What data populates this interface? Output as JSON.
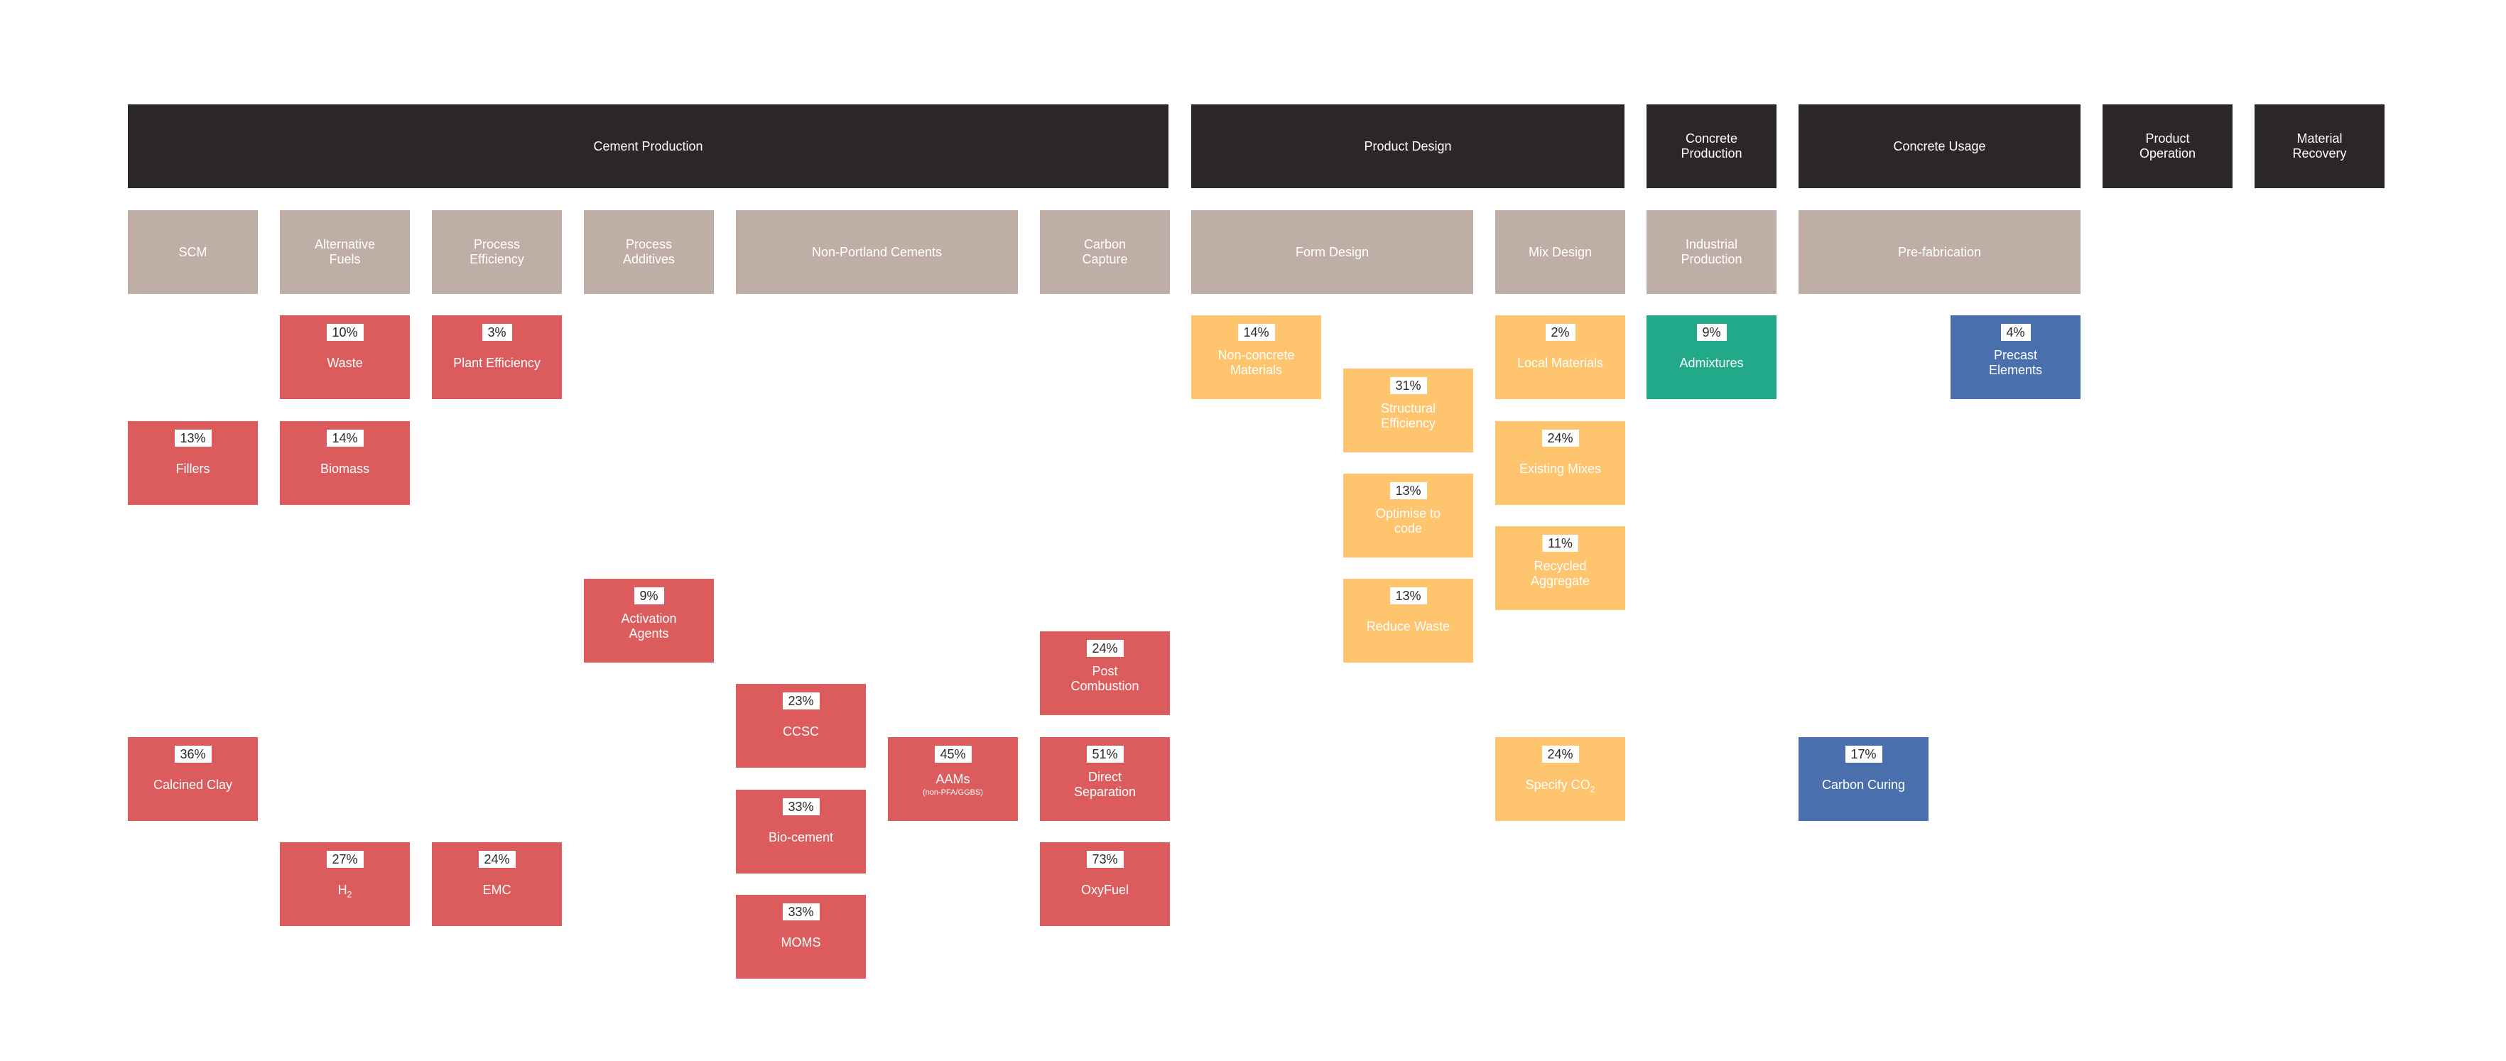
{
  "stages": [
    {
      "id": "cement-production",
      "label": "Cement Production"
    },
    {
      "id": "product-design",
      "label": "Product Design"
    },
    {
      "id": "concrete-production",
      "label": "Concrete\nProduction"
    },
    {
      "id": "concrete-usage",
      "label": "Concrete Usage"
    },
    {
      "id": "product-operation",
      "label": "Product\nOperation"
    },
    {
      "id": "material-recovery",
      "label": "Material\nRecovery"
    }
  ],
  "categories": [
    {
      "id": "scm",
      "label": "SCM"
    },
    {
      "id": "alternative-fuels",
      "label": "Alternative\nFuels"
    },
    {
      "id": "process-efficiency",
      "label": "Process\nEfficiency"
    },
    {
      "id": "process-additives",
      "label": "Process\nAdditives"
    },
    {
      "id": "non-portland-cements",
      "label": "Non-Portland Cements"
    },
    {
      "id": "carbon-capture",
      "label": "Carbon\nCapture"
    },
    {
      "id": "form-design",
      "label": "Form Design"
    },
    {
      "id": "mix-design",
      "label": "Mix Design"
    },
    {
      "id": "industrial-production",
      "label": "Industrial\nProduction"
    },
    {
      "id": "pre-fabrication",
      "label": "Pre-fabrication"
    }
  ],
  "items": [
    {
      "id": "waste",
      "pct": "10%",
      "label": "Waste",
      "color": "red"
    },
    {
      "id": "plant-efficiency",
      "pct": "3%",
      "label": "Plant Efficiency",
      "color": "red"
    },
    {
      "id": "non-concrete-materials",
      "pct": "14%",
      "label": "Non-concrete\nMaterials",
      "color": "yellow"
    },
    {
      "id": "structural-efficiency",
      "pct": "31%",
      "label": "Structural\nEfficiency",
      "color": "yellow"
    },
    {
      "id": "local-materials",
      "pct": "2%",
      "label": "Local Materials",
      "color": "yellow"
    },
    {
      "id": "admixtures",
      "pct": "9%",
      "label": "Admixtures",
      "color": "green"
    },
    {
      "id": "precast-elements",
      "pct": "4%",
      "label": "Precast\nElements",
      "color": "blue"
    },
    {
      "id": "fillers",
      "pct": "13%",
      "label": "Fillers",
      "color": "red"
    },
    {
      "id": "biomass",
      "pct": "14%",
      "label": "Biomass",
      "color": "red"
    },
    {
      "id": "existing-mixes",
      "pct": "24%",
      "label": "Existing Mixes",
      "color": "yellow"
    },
    {
      "id": "optimise-to-code",
      "pct": "13%",
      "label": "Optimise to\ncode",
      "color": "yellow"
    },
    {
      "id": "recycled-aggregate",
      "pct": "11%",
      "label": "Recycled\nAggregate",
      "color": "yellow"
    },
    {
      "id": "activation-agents",
      "pct": "9%",
      "label": "Activation\nAgents",
      "color": "red"
    },
    {
      "id": "reduce-waste",
      "pct": "13%",
      "label": "Reduce Waste",
      "color": "yellow"
    },
    {
      "id": "post-combustion",
      "pct": "24%",
      "label": "Post\nCombustion",
      "color": "red"
    },
    {
      "id": "ccsc",
      "pct": "23%",
      "label": "CCSC",
      "color": "red"
    },
    {
      "id": "calcined-clay",
      "pct": "36%",
      "label": "Calcined Clay",
      "color": "red"
    },
    {
      "id": "aams",
      "pct": "45%",
      "label": "AAMs",
      "note": "(non-PFA/GGBS)",
      "color": "red"
    },
    {
      "id": "direct-separation",
      "pct": "51%",
      "label": "Direct\nSeparation",
      "color": "red"
    },
    {
      "id": "specify-co2",
      "pct": "24%",
      "label": "Specify CO",
      "sub": "2",
      "color": "yellow"
    },
    {
      "id": "carbon-curing",
      "pct": "17%",
      "label": "Carbon Curing",
      "color": "blue"
    },
    {
      "id": "bio-cement",
      "pct": "33%",
      "label": "Bio-cement",
      "color": "red"
    },
    {
      "id": "h2",
      "pct": "27%",
      "label": "H",
      "sub": "2",
      "color": "red"
    },
    {
      "id": "emc",
      "pct": "24%",
      "label": "EMC",
      "color": "red"
    },
    {
      "id": "oxyfuel",
      "pct": "73%",
      "label": "OxyFuel",
      "color": "red"
    },
    {
      "id": "moms",
      "pct": "33%",
      "label": "MOMS",
      "color": "red"
    }
  ]
}
